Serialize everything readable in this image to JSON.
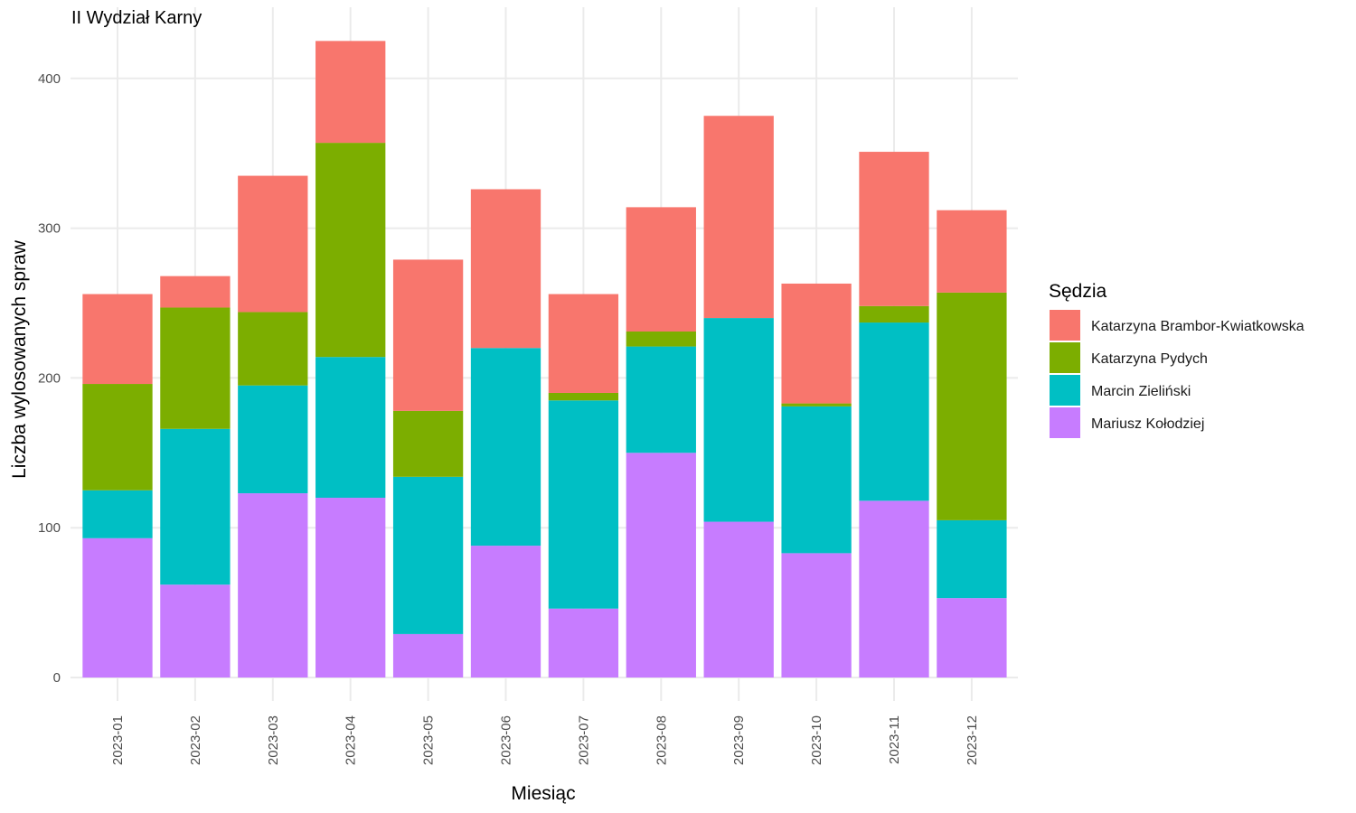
{
  "chart_data": {
    "type": "bar",
    "stacked": true,
    "title": "II Wydział Karny",
    "xlabel": "Miesiąc",
    "ylabel": "Liczba wylosowanych spraw",
    "ylim": [
      0,
      440
    ],
    "yticks": [
      0,
      100,
      200,
      300,
      400
    ],
    "grid": true,
    "legend": {
      "title": "Sędzia",
      "position": "right"
    },
    "categories": [
      "2023-01",
      "2023-02",
      "2023-03",
      "2023-04",
      "2023-05",
      "2023-06",
      "2023-07",
      "2023-08",
      "2023-09",
      "2023-10",
      "2023-11",
      "2023-12"
    ],
    "series": [
      {
        "name": "Katarzyna Brambor-Kwiatkowska",
        "color": "#F8766D",
        "values": [
          60,
          21,
          91,
          68,
          101,
          106,
          66,
          83,
          135,
          80,
          103,
          55
        ]
      },
      {
        "name": "Katarzyna Pydych",
        "color": "#7CAE00",
        "values": [
          71,
          81,
          49,
          143,
          44,
          0,
          5,
          10,
          0,
          2,
          11,
          152
        ]
      },
      {
        "name": "Marcin Zieliński",
        "color": "#00BFC4",
        "values": [
          32,
          104,
          72,
          94,
          105,
          132,
          139,
          71,
          136,
          98,
          119,
          52
        ]
      },
      {
        "name": "Mariusz Kołodziej",
        "color": "#C77CFF",
        "values": [
          93,
          62,
          123,
          120,
          29,
          88,
          46,
          150,
          104,
          83,
          118,
          53
        ]
      }
    ]
  }
}
